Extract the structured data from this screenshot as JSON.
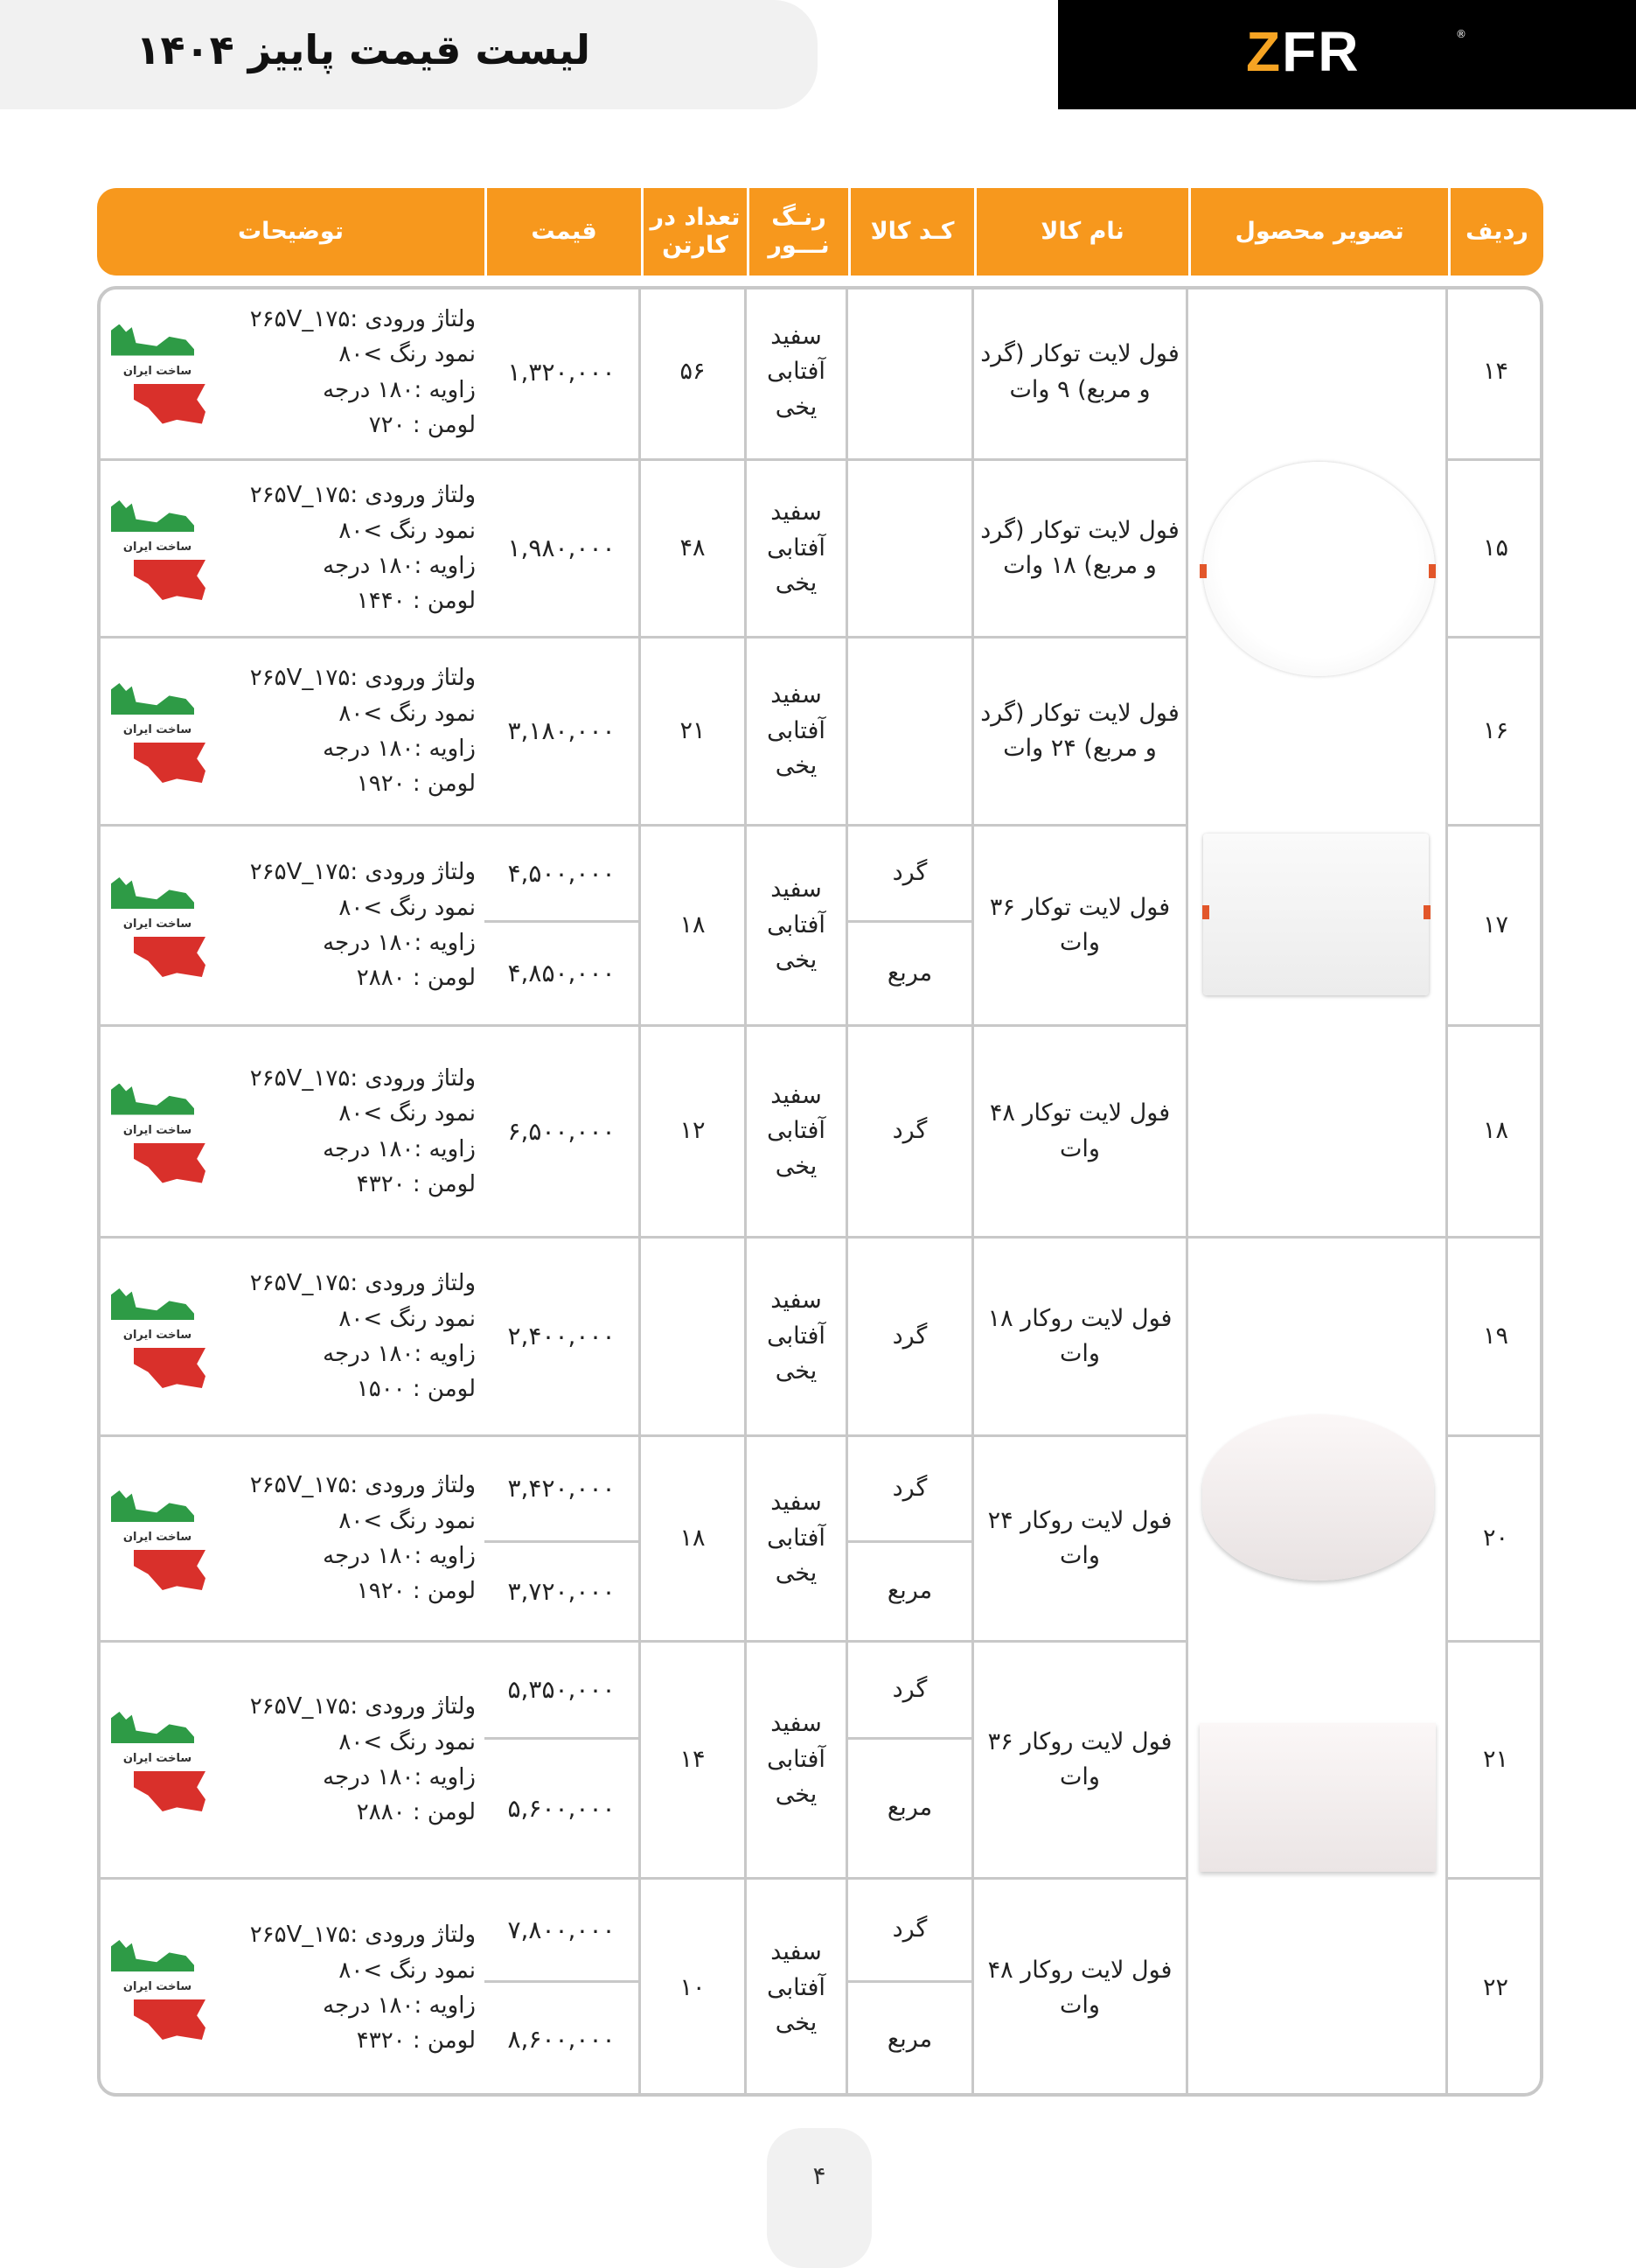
{
  "header": {
    "title": "لیست قیمت پاییز ۱۴۰۴",
    "logo": "ZFR"
  },
  "columns": [
    "ردیف",
    "تصویر محصول",
    "نام کالا",
    "کـد کالا",
    "رنـگ نـــور",
    "تعداد در کارتن",
    "قیمت",
    "توضیحات"
  ],
  "badge_text": "ساخت ایران",
  "rows": [
    {
      "num": "۱۴",
      "name": "فول لایت توکار (گرد و مربع) ۹ وات",
      "codes": [
        ""
      ],
      "color": "سفید آفتابی یخی",
      "qty": "۵۶",
      "prices": [
        "۱,۳۲۰,۰۰۰"
      ],
      "desc": [
        "ولتاژ ورودی :۱۷۵_۲۶۵V",
        "نمود رنگ >۸۰",
        "زاویه :۱۸۰ درجه",
        "لومن : ۷۲۰"
      ]
    },
    {
      "num": "۱۵",
      "name": "فول لایت توکار (گرد و مربع) ۱۸ وات",
      "codes": [
        ""
      ],
      "color": "سفید آفتابی یخی",
      "qty": "۴۸",
      "prices": [
        "۱,۹۸۰,۰۰۰"
      ],
      "desc": [
        "ولتاژ ورودی :۱۷۵_۲۶۵V",
        "نمود رنگ >۸۰",
        "زاویه :۱۸۰ درجه",
        "لومن : ۱۴۴۰"
      ]
    },
    {
      "num": "۱۶",
      "name": "فول لایت توکار (گرد و مربع) ۲۴ وات",
      "codes": [
        ""
      ],
      "color": "سفید آفتابی یخی",
      "qty": "۲۱",
      "prices": [
        "۳,۱۸۰,۰۰۰"
      ],
      "desc": [
        "ولتاژ ورودی :۱۷۵_۲۶۵V",
        "نمود رنگ >۸۰",
        "زاویه :۱۸۰ درجه",
        "لومن : ۱۹۲۰"
      ]
    },
    {
      "num": "۱۷",
      "name": "فول لایت توکار ۳۶ وات",
      "codes": [
        "گرد",
        "مربع"
      ],
      "color": "سفید آفتابی یخی",
      "qty": "۱۸",
      "prices": [
        "۴,۵۰۰,۰۰۰",
        "۴,۸۵۰,۰۰۰"
      ],
      "desc": [
        "ولتاژ ورودی :۱۷۵_۲۶۵V",
        "نمود رنگ >۸۰",
        "زاویه :۱۸۰ درجه",
        "لومن : ۲۸۸۰"
      ]
    },
    {
      "num": "۱۸",
      "name": "فول لایت توکار ۴۸ وات",
      "codes": [
        "گرد"
      ],
      "color": "سفید آفتابی یخی",
      "qty": "۱۲",
      "prices": [
        "۶,۵۰۰,۰۰۰"
      ],
      "desc": [
        "ولتاژ ورودی :۱۷۵_۲۶۵V",
        "نمود رنگ >۸۰",
        "زاویه :۱۸۰ درجه",
        "لومن : ۴۳۲۰"
      ]
    },
    {
      "num": "۱۹",
      "name": "فول لایت روکار ۱۸ وات",
      "codes": [
        "گرد"
      ],
      "color": "سفید آفتابی یخی",
      "qty": "",
      "prices": [
        "۲,۴۰۰,۰۰۰"
      ],
      "desc": [
        "ولتاژ ورودی :۱۷۵_۲۶۵V",
        "نمود رنگ >۸۰",
        "زاویه :۱۸۰ درجه",
        "لومن : ۱۵۰۰"
      ]
    },
    {
      "num": "۲۰",
      "name": "فول لایت روکار ۲۴ وات",
      "codes": [
        "گرد",
        "مربع"
      ],
      "color": "سفید آفتابی یخی",
      "qty": "۱۸",
      "prices": [
        "۳,۴۲۰,۰۰۰",
        "۳,۷۲۰,۰۰۰"
      ],
      "desc": [
        "ولتاژ ورودی :۱۷۵_۲۶۵V",
        "نمود رنگ >۸۰",
        "زاویه :۱۸۰ درجه",
        "لومن : ۱۹۲۰"
      ]
    },
    {
      "num": "۲۱",
      "name": "فول لایت روکار ۳۶ وات",
      "codes": [
        "گرد",
        "مربع"
      ],
      "color": "سفید آفتابی یخی",
      "qty": "۱۴",
      "prices": [
        "۵,۳۵۰,۰۰۰",
        "۵,۶۰۰,۰۰۰"
      ],
      "desc": [
        "ولتاژ ورودی :۱۷۵_۲۶۵V",
        "نمود رنگ >۸۰",
        "زاویه :۱۸۰ درجه",
        "لومن : ۲۸۸۰"
      ]
    },
    {
      "num": "۲۲",
      "name": "فول لایت روکار ۴۸ وات",
      "codes": [
        "گرد",
        "مربع"
      ],
      "color": "سفید آفتابی یخی",
      "qty": "۱۰",
      "prices": [
        "۷,۸۰۰,۰۰۰",
        "۸,۶۰۰,۰۰۰"
      ],
      "desc": [
        "ولتاژ ورودی :۱۷۵_۲۶۵V",
        "نمود رنگ >۸۰",
        "زاویه :۱۸۰ درجه",
        "لومن : ۴۳۲۰"
      ]
    }
  ],
  "colors": {
    "header_orange": "#f7981d",
    "logo_bg": "#000000",
    "logo_accent": "#f6a423",
    "border": "#c8c8c8"
  },
  "page_number": "۴"
}
